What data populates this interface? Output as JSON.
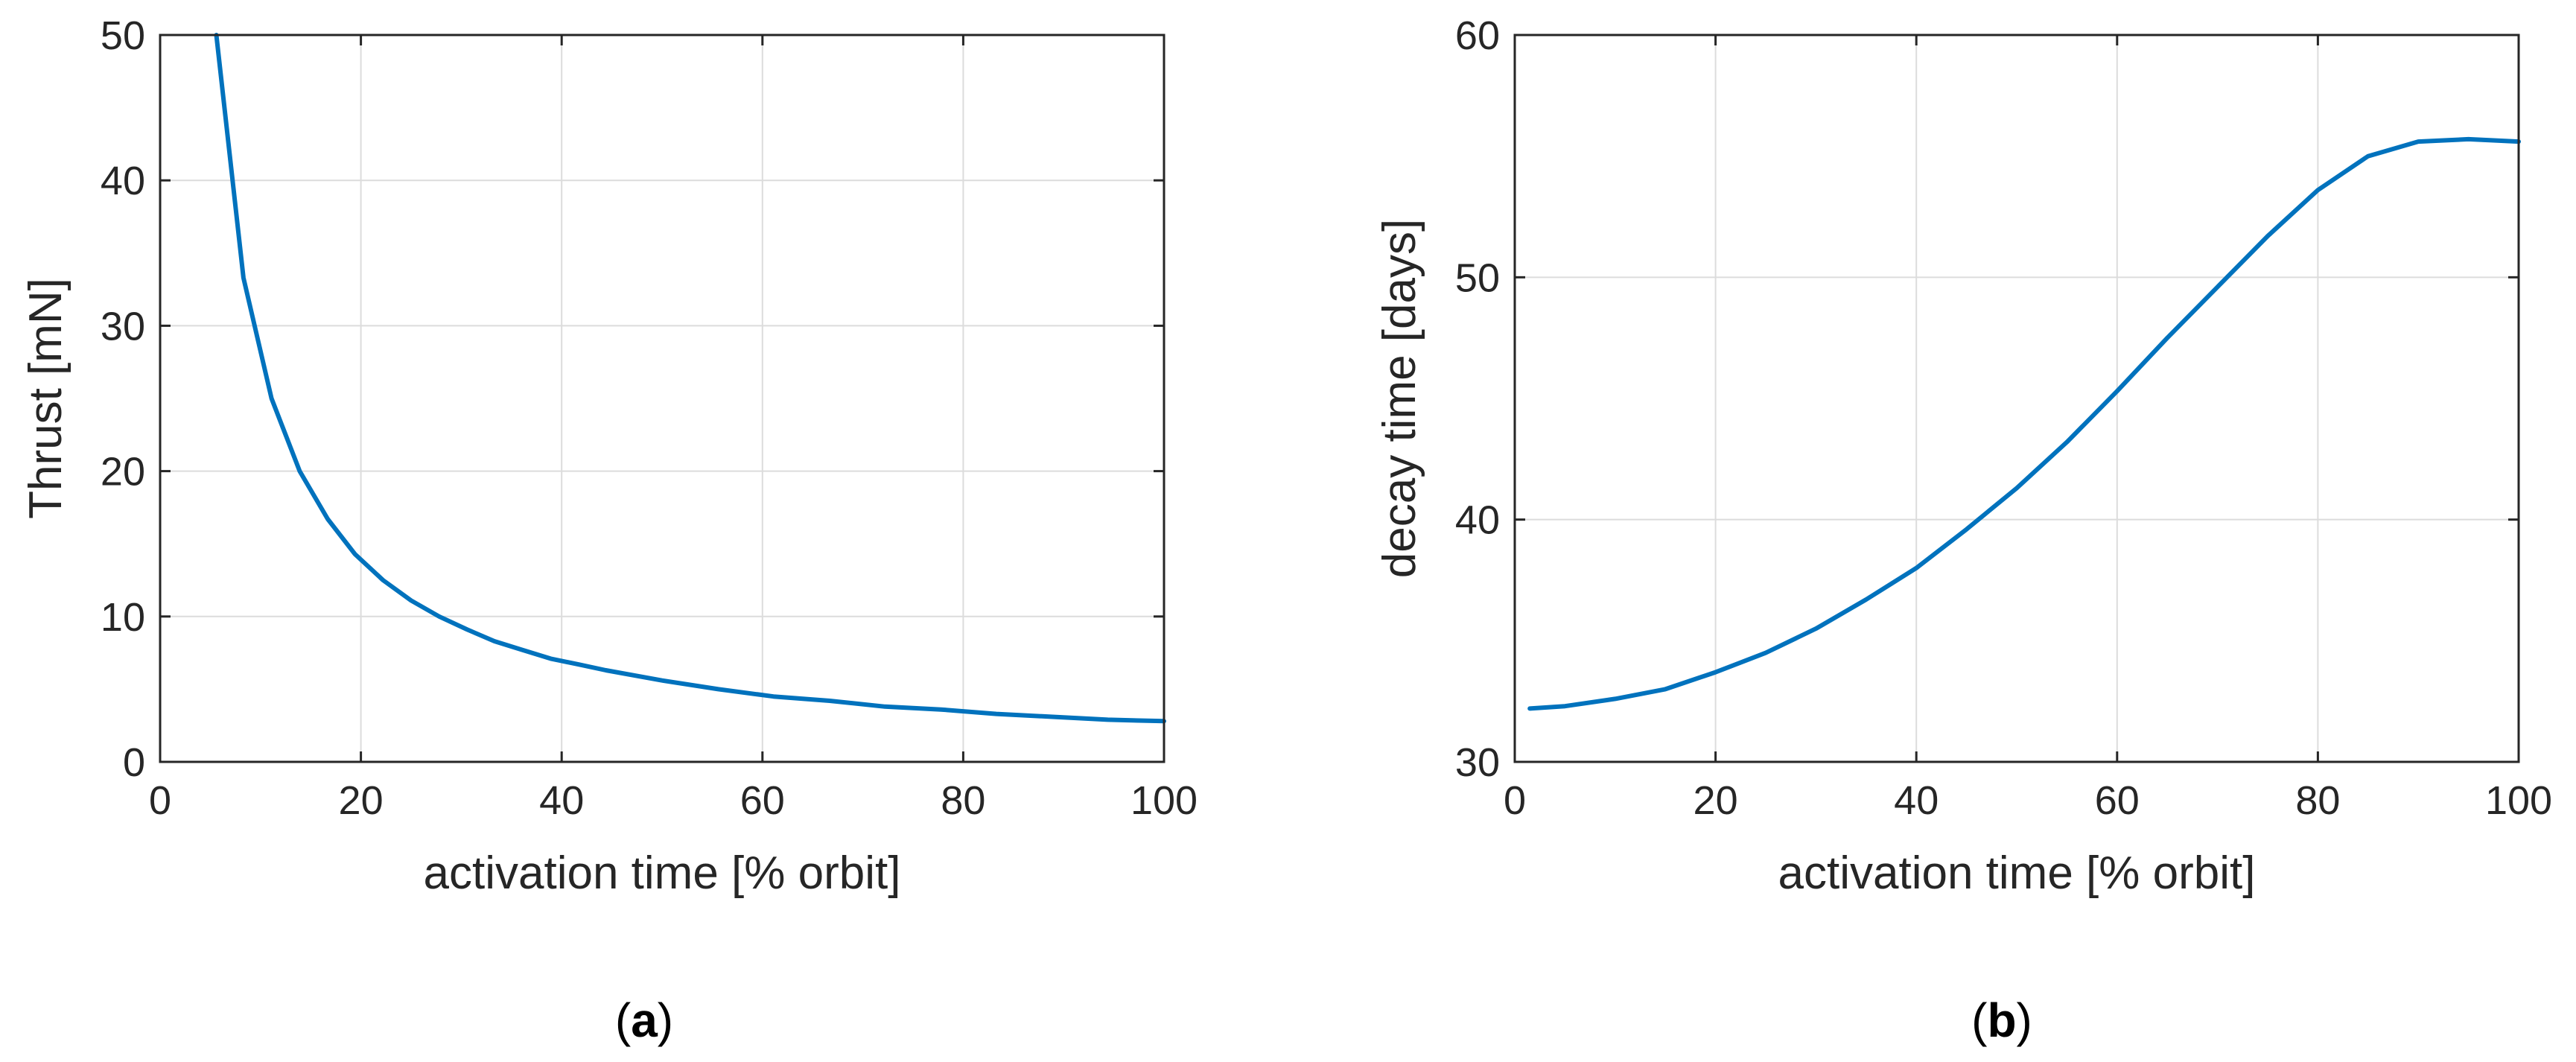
{
  "chart_data": [
    {
      "type": "line",
      "panel_label": "a",
      "xlabel": "activation time [% orbit]",
      "ylabel": "Thrust [mN]",
      "xlim": [
        0,
        100
      ],
      "ylim": [
        0,
        50
      ],
      "xticks": [
        0,
        20,
        40,
        60,
        80,
        100
      ],
      "yticks": [
        0,
        10,
        20,
        30,
        40,
        50
      ],
      "grid": true,
      "series_color": "#0072BD",
      "x": [
        5.6,
        8.3,
        11.1,
        13.9,
        16.7,
        19.4,
        22.2,
        25.0,
        27.8,
        30.6,
        33.3,
        36.1,
        38.9,
        41.7,
        44.4,
        50.0,
        55.6,
        61.1,
        66.7,
        72.2,
        77.8,
        83.3,
        88.9,
        94.4,
        100.0
      ],
      "y": [
        50.0,
        33.3,
        25.0,
        20.0,
        16.7,
        14.3,
        12.5,
        11.1,
        10.0,
        9.1,
        8.3,
        7.7,
        7.1,
        6.7,
        6.3,
        5.6,
        5.0,
        4.5,
        4.2,
        3.8,
        3.6,
        3.3,
        3.1,
        2.9,
        2.8
      ]
    },
    {
      "type": "line",
      "panel_label": "b",
      "xlabel": "activation time [% orbit]",
      "ylabel": "decay time [days]",
      "xlim": [
        0,
        100
      ],
      "ylim": [
        30,
        60
      ],
      "xticks": [
        0,
        20,
        40,
        60,
        80,
        100
      ],
      "yticks": [
        30,
        40,
        50,
        60
      ],
      "grid": true,
      "series_color": "#0072BD",
      "x": [
        1.5,
        5,
        10,
        15,
        20,
        25,
        30,
        35,
        40,
        45,
        50,
        55,
        60,
        65,
        70,
        75,
        80,
        85,
        90,
        95,
        100
      ],
      "y": [
        32.2,
        32.3,
        32.6,
        33.0,
        33.7,
        34.5,
        35.5,
        36.7,
        38.0,
        39.6,
        41.3,
        43.2,
        45.3,
        47.5,
        49.6,
        51.7,
        53.6,
        55.0,
        55.6,
        55.7,
        55.6
      ]
    }
  ]
}
